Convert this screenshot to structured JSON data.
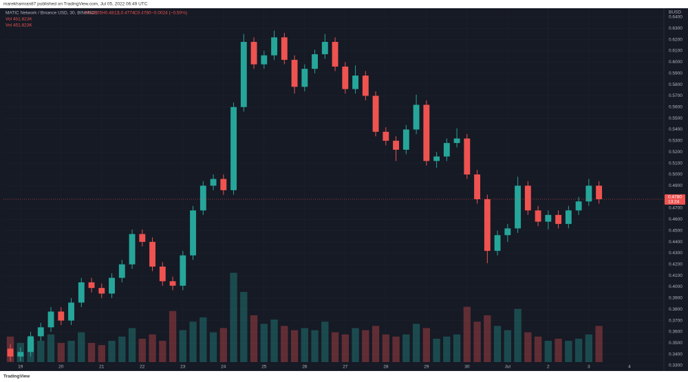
{
  "header": {
    "published": "marekhamran87 published on TradingView.com, Jul 05, 2022 06:49 UTC",
    "logo": "TradingView"
  },
  "chart_data": {
    "type": "candlestick",
    "legend": {
      "symbol": "MATIC Network / Binance USD, 30, BINANCE",
      "open": "O0.4805",
      "high": "H0.4812",
      "low": "L0.4774",
      "close": "C0.4780",
      "change": "−0.0024 (−0.50%)",
      "volume_rows": [
        "Vol  451.823K",
        "Vol  451.823K"
      ]
    },
    "currency": "BUSD",
    "last_price": 0.478,
    "last_price_label": "0.4780",
    "countdown": "13:24",
    "up_color": "#26a69a",
    "down_color": "#ef5350",
    "x": [
      18.75,
      19,
      19.25,
      19.5,
      19.75,
      20,
      20.25,
      20.5,
      20.75,
      21,
      21.25,
      21.5,
      21.75,
      22,
      22.25,
      22.5,
      22.75,
      23,
      23.25,
      23.5,
      23.75,
      24,
      24.25,
      24.5,
      24.75,
      25,
      25.25,
      25.5,
      25.75,
      26,
      26.25,
      26.5,
      26.75,
      27,
      27.25,
      27.5,
      27.75,
      28,
      28.25,
      28.5,
      28.75,
      29,
      29.25,
      29.5,
      29.75,
      30,
      30.25,
      30.5,
      30.75,
      31,
      31.25,
      31.5,
      31.75,
      32,
      32.25,
      32.5,
      32.75,
      33,
      33.25
    ],
    "open": [
      0.345,
      0.338,
      0.342,
      0.356,
      0.364,
      0.378,
      0.37,
      0.386,
      0.404,
      0.399,
      0.394,
      0.408,
      0.42,
      0.447,
      0.44,
      0.418,
      0.405,
      0.401,
      0.428,
      0.468,
      0.49,
      0.496,
      0.486,
      0.56,
      0.618,
      0.598,
      0.606,
      0.622,
      0.602,
      0.578,
      0.594,
      0.607,
      0.618,
      0.596,
      0.576,
      0.588,
      0.57,
      0.538,
      0.53,
      0.522,
      0.54,
      0.562,
      0.512,
      0.516,
      0.528,
      0.532,
      0.5,
      0.478,
      0.432,
      0.446,
      0.452,
      0.49,
      0.468,
      0.458,
      0.464,
      0.456,
      0.468,
      0.476,
      0.49
    ],
    "high": [
      0.349,
      0.346,
      0.36,
      0.368,
      0.382,
      0.382,
      0.39,
      0.408,
      0.408,
      0.403,
      0.412,
      0.424,
      0.451,
      0.451,
      0.444,
      0.422,
      0.409,
      0.432,
      0.472,
      0.494,
      0.5,
      0.5,
      0.564,
      0.625,
      0.622,
      0.61,
      0.628,
      0.626,
      0.606,
      0.598,
      0.611,
      0.625,
      0.622,
      0.6,
      0.597,
      0.592,
      0.574,
      0.542,
      0.534,
      0.544,
      0.571,
      0.566,
      0.52,
      0.532,
      0.541,
      0.536,
      0.504,
      0.482,
      0.45,
      0.456,
      0.498,
      0.494,
      0.472,
      0.468,
      0.468,
      0.472,
      0.48,
      0.496,
      0.494
    ],
    "low": [
      0.334,
      0.334,
      0.338,
      0.352,
      0.36,
      0.366,
      0.366,
      0.382,
      0.395,
      0.39,
      0.39,
      0.404,
      0.416,
      0.436,
      0.414,
      0.401,
      0.397,
      0.397,
      0.424,
      0.464,
      0.486,
      0.482,
      0.482,
      0.556,
      0.594,
      0.594,
      0.602,
      0.598,
      0.572,
      0.574,
      0.59,
      0.603,
      0.592,
      0.572,
      0.572,
      0.566,
      0.534,
      0.526,
      0.512,
      0.518,
      0.536,
      0.508,
      0.506,
      0.512,
      0.524,
      0.496,
      0.474,
      0.421,
      0.428,
      0.44,
      0.448,
      0.464,
      0.454,
      0.451,
      0.452,
      0.452,
      0.464,
      0.472,
      0.474
    ],
    "close": [
      0.338,
      0.342,
      0.356,
      0.364,
      0.378,
      0.37,
      0.386,
      0.404,
      0.399,
      0.394,
      0.408,
      0.42,
      0.447,
      0.44,
      0.418,
      0.405,
      0.401,
      0.428,
      0.468,
      0.49,
      0.496,
      0.486,
      0.56,
      0.618,
      0.598,
      0.606,
      0.622,
      0.602,
      0.578,
      0.594,
      0.607,
      0.618,
      0.596,
      0.576,
      0.588,
      0.57,
      0.538,
      0.53,
      0.522,
      0.54,
      0.562,
      0.512,
      0.516,
      0.528,
      0.532,
      0.5,
      0.478,
      0.432,
      0.446,
      0.452,
      0.49,
      0.468,
      0.458,
      0.464,
      0.456,
      0.468,
      0.476,
      0.49,
      0.478
    ],
    "volume": [
      1200,
      900,
      1100,
      1000,
      1300,
      900,
      1000,
      1400,
      900,
      800,
      1000,
      1200,
      1600,
      1100,
      1300,
      1000,
      2400,
      1500,
      1900,
      2100,
      1400,
      1600,
      4200,
      3300,
      2200,
      1800,
      2000,
      1700,
      1500,
      1600,
      1500,
      1900,
      1400,
      1300,
      1600,
      1500,
      1700,
      1300,
      1200,
      1300,
      1800,
      1600,
      1100,
      1200,
      1300,
      2600,
      1900,
      2200,
      1700,
      1500,
      2500,
      1400,
      1200,
      1000,
      1100,
      1000,
      1100,
      1300,
      1700
    ],
    "xlim": [
      18.58,
      34.85
    ],
    "xticks": [
      19,
      20,
      21,
      22,
      23,
      24,
      25,
      26,
      27,
      28,
      29,
      30,
      {
        "value": 31,
        "label": "Jul"
      },
      {
        "value": 32,
        "label": "2"
      },
      {
        "value": 33,
        "label": "3"
      },
      {
        "value": 34,
        "label": "4"
      }
    ],
    "ylim": [
      0.3251,
      0.6467
    ],
    "yticks": [
      {
        "value": 0.33,
        "label": "0.3300"
      },
      {
        "value": 0.34,
        "label": "0.3400"
      },
      {
        "value": 0.35,
        "label": "0.3500"
      },
      {
        "value": 0.36,
        "label": "0.3600"
      },
      {
        "value": 0.37,
        "label": "0.3700"
      },
      {
        "value": 0.38,
        "label": "0.3800"
      },
      {
        "value": 0.39,
        "label": "0.3900"
      },
      {
        "value": 0.4,
        "label": "0.4000"
      },
      {
        "value": 0.41,
        "label": "0.4100"
      },
      {
        "value": 0.42,
        "label": "0.4200"
      },
      {
        "value": 0.43,
        "label": "0.4300"
      },
      {
        "value": 0.44,
        "label": "0.4400"
      },
      {
        "value": 0.45,
        "label": "0.4500"
      },
      {
        "value": 0.46,
        "label": "0.4600"
      },
      {
        "value": 0.47,
        "label": "0.4700"
      },
      {
        "value": 0.49,
        "label": "0.4900"
      },
      {
        "value": 0.5,
        "label": "0.5000"
      },
      {
        "value": 0.51,
        "label": "0.5100"
      },
      {
        "value": 0.52,
        "label": "0.5200"
      },
      {
        "value": 0.53,
        "label": "0.5300"
      },
      {
        "value": 0.54,
        "label": "0.5400"
      },
      {
        "value": 0.55,
        "label": "0.5500"
      },
      {
        "value": 0.56,
        "label": "0.5600"
      },
      {
        "value": 0.57,
        "label": "0.5700"
      },
      {
        "value": 0.58,
        "label": "0.5800"
      },
      {
        "value": 0.59,
        "label": "0.5900"
      },
      {
        "value": 0.6,
        "label": "0.6000"
      },
      {
        "value": 0.61,
        "label": "0.6100"
      },
      {
        "value": 0.62,
        "label": "0.6200"
      },
      {
        "value": 0.63,
        "label": "0.6300"
      },
      {
        "value": 0.64,
        "label": "0.6400"
      }
    ]
  }
}
